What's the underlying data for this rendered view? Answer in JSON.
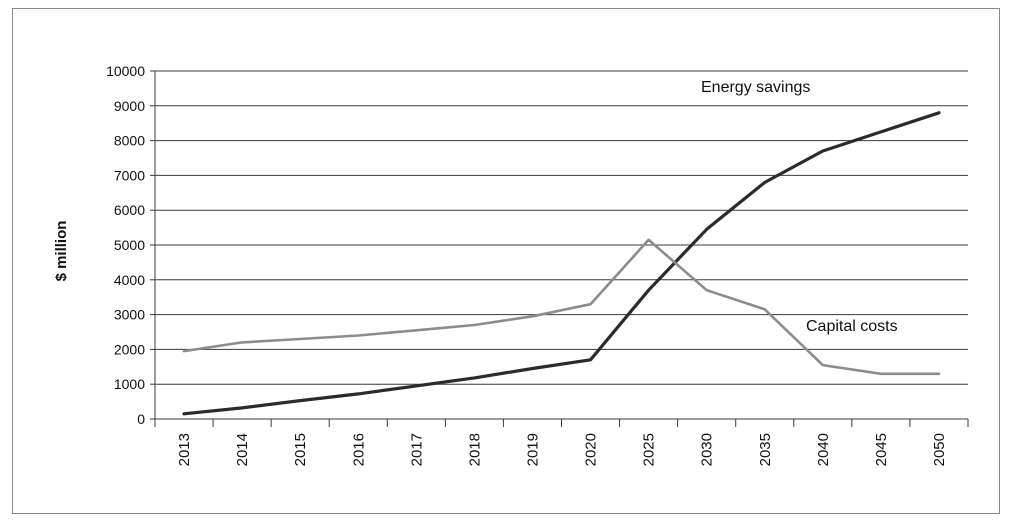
{
  "chart_data": {
    "type": "line",
    "categories": [
      "2013",
      "2014",
      "2015",
      "2016",
      "2017",
      "2018",
      "2019",
      "2020",
      "2025",
      "2030",
      "2035",
      "2040",
      "2045",
      "2050"
    ],
    "ylabel": "$ million",
    "xlabel": "",
    "ylim": [
      0,
      10000
    ],
    "yticks": [
      0,
      1000,
      2000,
      3000,
      4000,
      5000,
      6000,
      7000,
      8000,
      9000,
      10000
    ],
    "grid": "horizontal",
    "series": [
      {
        "name": "Energy savings",
        "color": "#2b2b2b",
        "values": [
          150,
          320,
          530,
          720,
          950,
          1180,
          1450,
          1700,
          3700,
          5450,
          6800,
          7700,
          8250,
          8800
        ]
      },
      {
        "name": "Capital costs",
        "color": "#8c8c8c",
        "values": [
          1950,
          2200,
          2300,
          2400,
          2550,
          2700,
          2950,
          3300,
          5150,
          3700,
          3150,
          1550,
          1300,
          1300
        ]
      }
    ]
  }
}
